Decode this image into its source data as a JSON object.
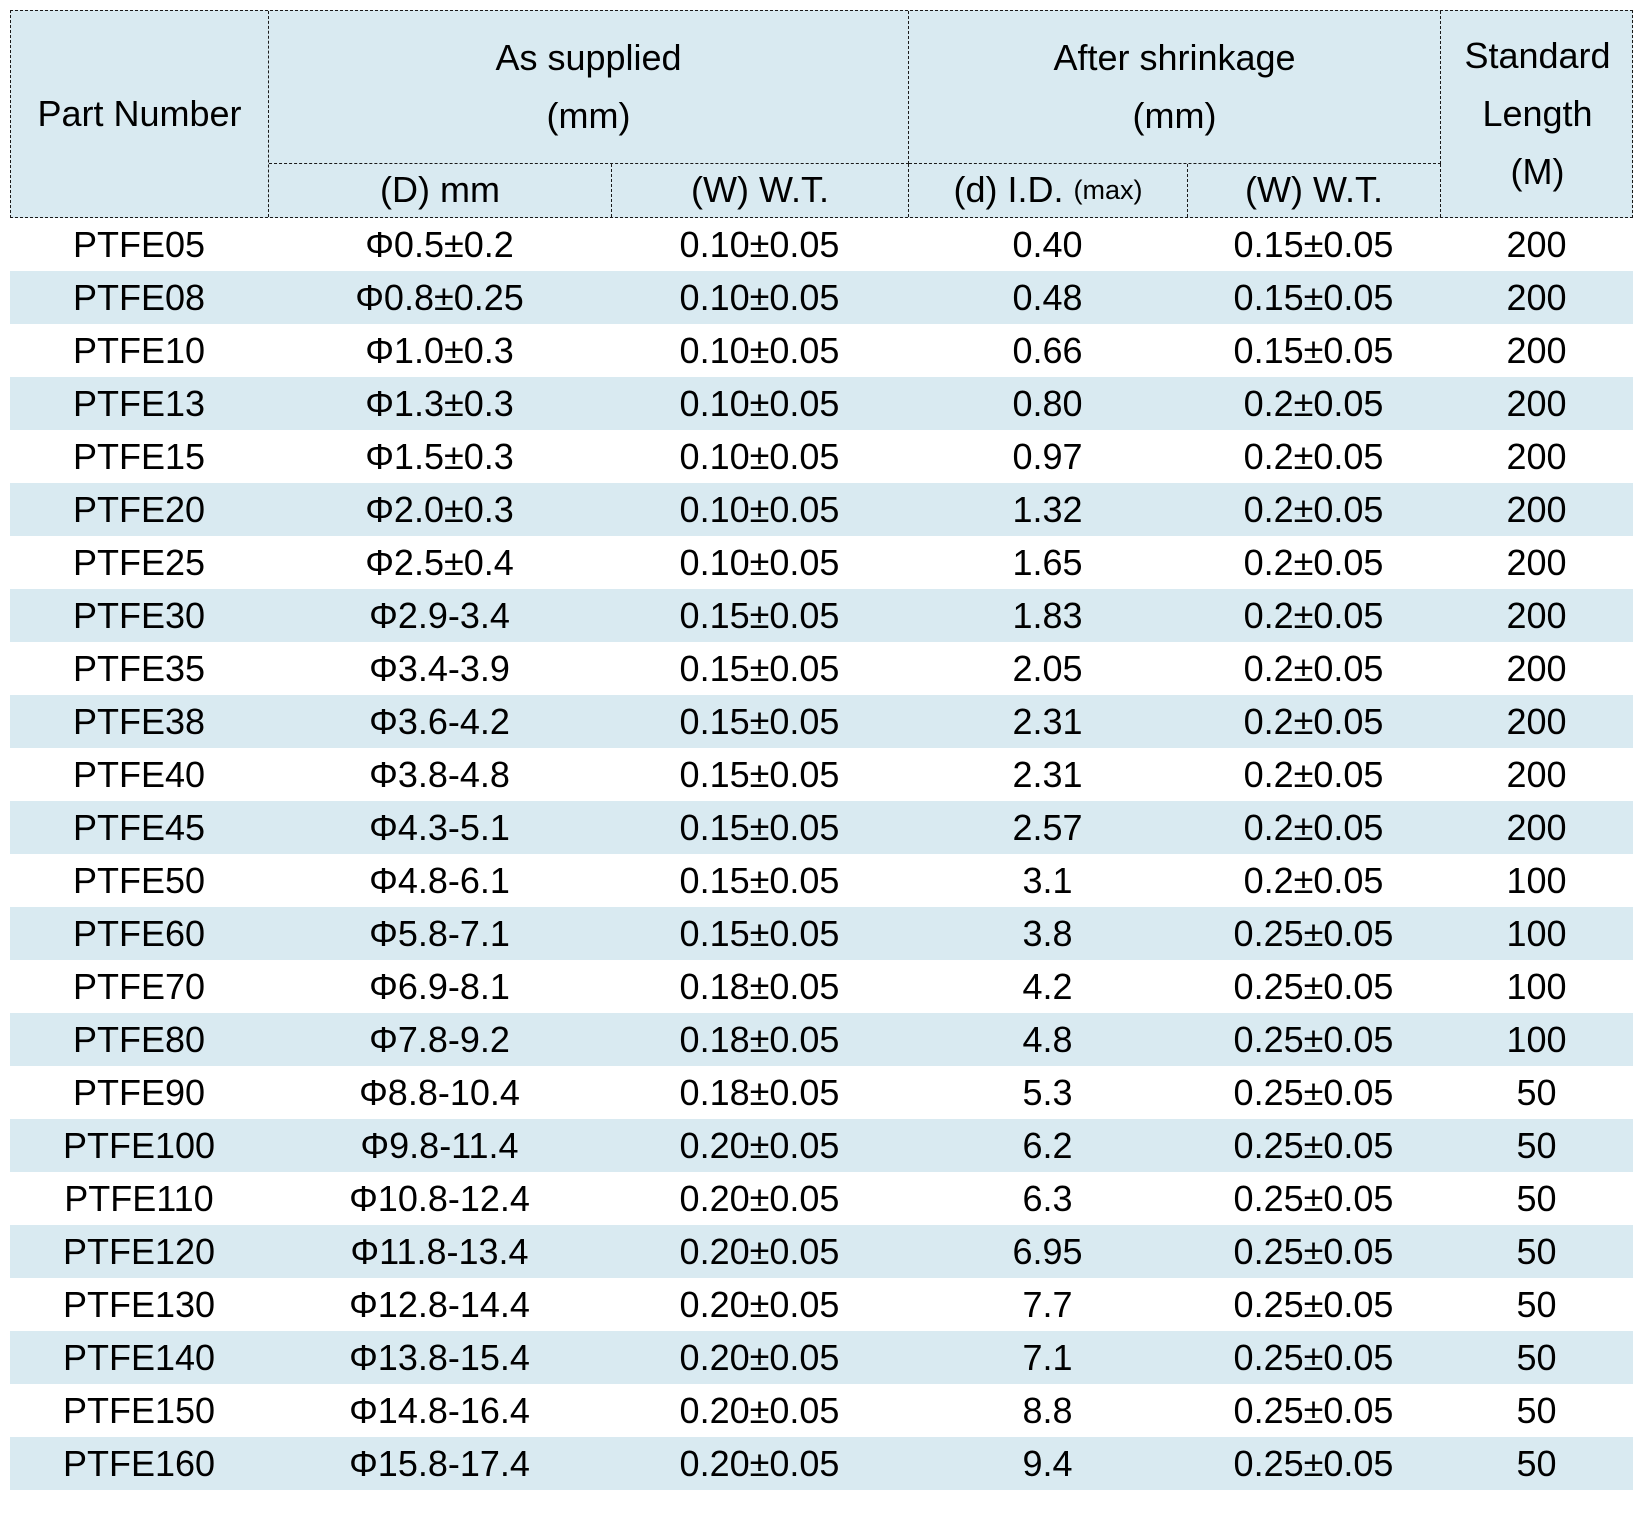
{
  "table": {
    "column_keys": [
      "part-number",
      "supplied-diameter",
      "supplied-wall-thickness",
      "shrink-inner-diameter",
      "shrink-wall-thickness",
      "standard-length"
    ],
    "header": {
      "part_number": "Part Number",
      "as_supplied": "As supplied\n(mm)",
      "after_shrinkage": "After shrinkage\n(mm)",
      "standard_length": "Standard\nLength\n(M)",
      "sub_d": "(D) mm",
      "sub_w1": "(W) W.T.",
      "sub_id": "(d) I.D.",
      "sub_id_max": "(max)",
      "sub_w2": "(W) W.T."
    },
    "rows": [
      [
        "PTFE05",
        "Φ0.5±0.2",
        "0.10±0.05",
        "0.40",
        "0.15±0.05",
        "200"
      ],
      [
        "PTFE08",
        "Φ0.8±0.25",
        "0.10±0.05",
        "0.48",
        "0.15±0.05",
        "200"
      ],
      [
        "PTFE10",
        "Φ1.0±0.3",
        "0.10±0.05",
        "0.66",
        "0.15±0.05",
        "200"
      ],
      [
        "PTFE13",
        "Φ1.3±0.3",
        "0.10±0.05",
        "0.80",
        "0.2±0.05",
        "200"
      ],
      [
        "PTFE15",
        "Φ1.5±0.3",
        "0.10±0.05",
        "0.97",
        "0.2±0.05",
        "200"
      ],
      [
        "PTFE20",
        "Φ2.0±0.3",
        "0.10±0.05",
        "1.32",
        "0.2±0.05",
        "200"
      ],
      [
        "PTFE25",
        "Φ2.5±0.4",
        "0.10±0.05",
        "1.65",
        "0.2±0.05",
        "200"
      ],
      [
        "PTFE30",
        "Φ2.9-3.4",
        "0.15±0.05",
        "1.83",
        "0.2±0.05",
        "200"
      ],
      [
        "PTFE35",
        "Φ3.4-3.9",
        "0.15±0.05",
        "2.05",
        "0.2±0.05",
        "200"
      ],
      [
        "PTFE38",
        "Φ3.6-4.2",
        "0.15±0.05",
        "2.31",
        "0.2±0.05",
        "200"
      ],
      [
        "PTFE40",
        "Φ3.8-4.8",
        "0.15±0.05",
        "2.31",
        "0.2±0.05",
        "200"
      ],
      [
        "PTFE45",
        "Φ4.3-5.1",
        "0.15±0.05",
        "2.57",
        "0.2±0.05",
        "200"
      ],
      [
        "PTFE50",
        "Φ4.8-6.1",
        "0.15±0.05",
        "3.1",
        "0.2±0.05",
        "100"
      ],
      [
        "PTFE60",
        "Φ5.8-7.1",
        "0.15±0.05",
        "3.8",
        "0.25±0.05",
        "100"
      ],
      [
        "PTFE70",
        "Φ6.9-8.1",
        "0.18±0.05",
        "4.2",
        "0.25±0.05",
        "100"
      ],
      [
        "PTFE80",
        "Φ7.8-9.2",
        "0.18±0.05",
        "4.8",
        "0.25±0.05",
        "100"
      ],
      [
        "PTFE90",
        "Φ8.8-10.4",
        "0.18±0.05",
        "5.3",
        "0.25±0.05",
        "50"
      ],
      [
        "PTFE100",
        "Φ9.8-11.4",
        "0.20±0.05",
        "6.2",
        "0.25±0.05",
        "50"
      ],
      [
        "PTFE110",
        "Φ10.8-12.4",
        "0.20±0.05",
        "6.3",
        "0.25±0.05",
        "50"
      ],
      [
        "PTFE120",
        "Φ11.8-13.4",
        "0.20±0.05",
        "6.95",
        "0.25±0.05",
        "50"
      ],
      [
        "PTFE130",
        "Φ12.8-14.4",
        "0.20±0.05",
        "7.7",
        "0.25±0.05",
        "50"
      ],
      [
        "PTFE140",
        "Φ13.8-15.4",
        "0.20±0.05",
        "7.1",
        "0.25±0.05",
        "50"
      ],
      [
        "PTFE150",
        "Φ14.8-16.4",
        "0.20±0.05",
        "8.8",
        "0.25±0.05",
        "50"
      ],
      [
        "PTFE160",
        "Φ15.8-17.4",
        "0.20±0.05",
        "9.4",
        "0.25±0.05",
        "50"
      ]
    ]
  },
  "colors": {
    "stripe": "#d9eaf1",
    "header_bg": "#d9eaf1",
    "border": "#1a1a1a",
    "text": "#000000"
  }
}
